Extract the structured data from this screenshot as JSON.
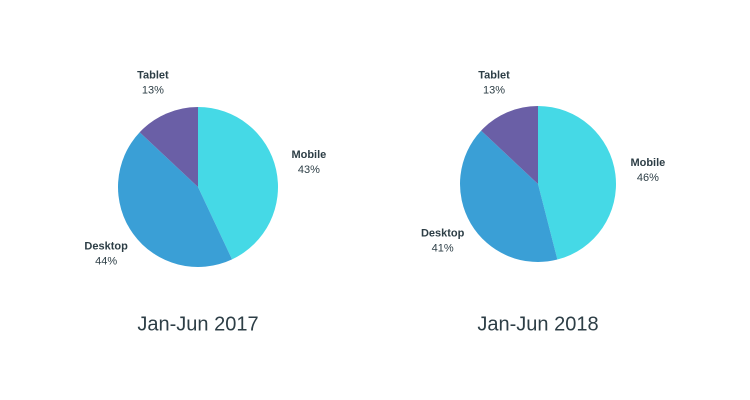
{
  "chart_data": [
    {
      "type": "pie",
      "title": "Jan-Jun 2017",
      "categories": [
        "Mobile",
        "Desktop",
        "Tablet"
      ],
      "values": [
        43,
        44,
        13
      ],
      "value_labels": [
        "43%",
        "44%",
        "13%"
      ],
      "colors": [
        "#45d9e6",
        "#3a9fd6",
        "#6a5fa6"
      ]
    },
    {
      "type": "pie",
      "title": "Jan-Jun 2018",
      "categories": [
        "Mobile",
        "Desktop",
        "Tablet"
      ],
      "values": [
        46,
        41,
        13
      ],
      "value_labels": [
        "46%",
        "41%",
        "13%"
      ],
      "colors": [
        "#45d9e6",
        "#3a9fd6",
        "#6a5fa6"
      ]
    }
  ]
}
